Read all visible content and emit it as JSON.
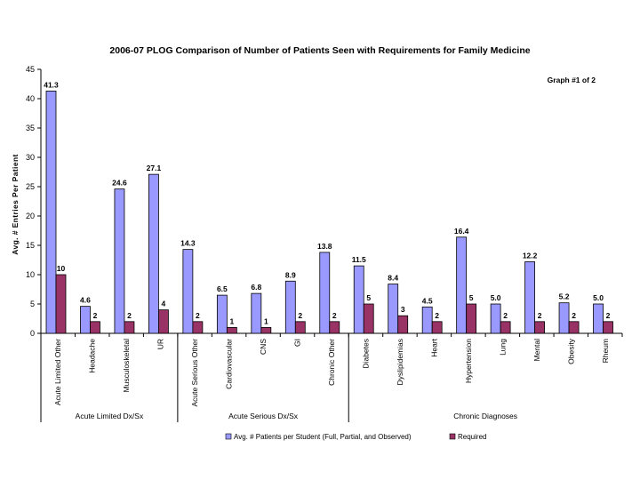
{
  "chart_data": {
    "type": "bar",
    "title": "2006-07 PLOG Comparison of Number of Patients Seen with Requirements for Family Medicine",
    "annotation": "Graph #1 of 2",
    "ylabel": "Avg. # Entries Per Patient",
    "xlabel": "",
    "ylim": [
      0,
      45
    ],
    "yticks": [
      0,
      5,
      10,
      15,
      20,
      25,
      30,
      35,
      40,
      45
    ],
    "grid": false,
    "legend_position": "bottom",
    "categories": [
      "Acute Limited Other",
      "Headache",
      "Musculoskeletal",
      "UR",
      "Acute Serious Other",
      "Cardiovascular",
      "CNS",
      "GI",
      "Chronic Other",
      "Diabetes",
      "Dyslipidemias",
      "Heart",
      "Hypertension",
      "Lung",
      "Mental",
      "Obesity",
      "Rheum"
    ],
    "series": [
      {
        "name": "Avg. # Patients per Student (Full, Partial, and Observed)",
        "color": "#9999ff",
        "values": [
          41.3,
          4.6,
          24.6,
          27.1,
          14.3,
          6.5,
          6.8,
          8.9,
          13.8,
          11.5,
          8.4,
          4.5,
          16.4,
          5.0,
          12.2,
          5.2,
          5.0
        ],
        "labels": [
          "41.3",
          "4.6",
          "24.6",
          "27.1",
          "14.3",
          "6.5",
          "6.8",
          "8.9",
          "13.8",
          "11.5",
          "8.4",
          "4.5",
          "16.4",
          "5.0",
          "12.2",
          "5.2",
          "5.0"
        ]
      },
      {
        "name": "Required",
        "color": "#993366",
        "values": [
          10,
          2,
          2,
          4,
          2,
          1,
          1,
          2,
          2,
          5,
          3,
          2,
          5,
          2,
          2,
          2,
          2
        ],
        "labels": [
          "10",
          "2",
          "2",
          "4",
          "2",
          "1",
          "1",
          "2",
          "2",
          "5",
          "3",
          "2",
          "5",
          "2",
          "2",
          "2",
          "2"
        ]
      }
    ],
    "groups": [
      {
        "label": "Acute Limited Dx/Sx",
        "start": 0,
        "end": 3
      },
      {
        "label": "Acute Serious Dx/Sx",
        "start": 4,
        "end": 8
      },
      {
        "label": "Chronic Diagnoses",
        "start": 9,
        "end": 16
      }
    ]
  }
}
